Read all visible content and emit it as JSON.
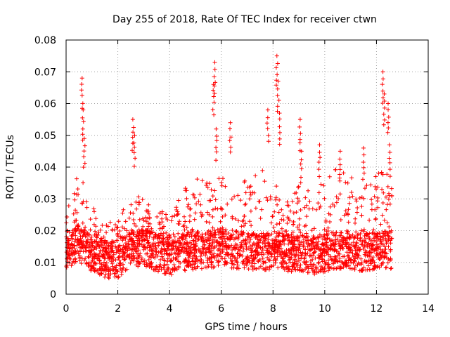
{
  "chart_data": {
    "type": "scatter",
    "title": "Day 255 of 2018, Rate Of TEC Index for receiver ctwn",
    "xlabel": "GPS time / hours",
    "ylabel": "ROTI / TECUs",
    "xlim": [
      0,
      14
    ],
    "ylim": [
      0,
      0.08
    ],
    "xticks": [
      0,
      2,
      4,
      6,
      8,
      10,
      12,
      14
    ],
    "xtick_labels": [
      "0",
      "2",
      "4",
      "6",
      "8",
      "10",
      "12",
      "14"
    ],
    "yticks": [
      0,
      0.01,
      0.02,
      0.03,
      0.04,
      0.05,
      0.06,
      0.07,
      0.08
    ],
    "ytick_labels": [
      "0",
      "0.01",
      "0.02",
      "0.03",
      "0.04",
      "0.05",
      "0.06",
      "0.07",
      "0.08"
    ],
    "grid": true,
    "marker": "+",
    "series": [
      {
        "name": "ROTI",
        "color": "#ff0000",
        "x_range": [
          0,
          12.6
        ],
        "profile": {
          "x": [
            0.0,
            0.5,
            1.0,
            1.5,
            2.0,
            2.5,
            3.0,
            3.5,
            4.0,
            4.5,
            5.0,
            5.5,
            6.0,
            6.5,
            7.0,
            7.5,
            8.0,
            8.5,
            9.0,
            9.5,
            10.0,
            10.5,
            11.0,
            11.5,
            12.0,
            12.6
          ],
          "median": [
            0.014,
            0.016,
            0.013,
            0.011,
            0.011,
            0.014,
            0.015,
            0.013,
            0.012,
            0.013,
            0.014,
            0.014,
            0.015,
            0.014,
            0.014,
            0.013,
            0.014,
            0.013,
            0.013,
            0.012,
            0.013,
            0.014,
            0.014,
            0.013,
            0.014,
            0.014
          ],
          "upper": [
            0.03,
            0.04,
            0.028,
            0.022,
            0.024,
            0.035,
            0.03,
            0.025,
            0.028,
            0.032,
            0.038,
            0.036,
            0.038,
            0.035,
            0.036,
            0.04,
            0.036,
            0.03,
            0.034,
            0.032,
            0.036,
            0.04,
            0.038,
            0.034,
            0.04,
            0.038
          ]
        },
        "spikes": [
          {
            "x": 0.62,
            "y": 0.068
          },
          {
            "x": 0.66,
            "y": 0.058
          },
          {
            "x": 0.7,
            "y": 0.049
          },
          {
            "x": 2.58,
            "y": 0.055
          },
          {
            "x": 2.65,
            "y": 0.05
          },
          {
            "x": 5.75,
            "y": 0.073
          },
          {
            "x": 5.7,
            "y": 0.066
          },
          {
            "x": 5.8,
            "y": 0.052
          },
          {
            "x": 6.35,
            "y": 0.054
          },
          {
            "x": 7.8,
            "y": 0.058
          },
          {
            "x": 8.15,
            "y": 0.075
          },
          {
            "x": 8.2,
            "y": 0.067
          },
          {
            "x": 8.25,
            "y": 0.057
          },
          {
            "x": 9.05,
            "y": 0.055
          },
          {
            "x": 9.1,
            "y": 0.045
          },
          {
            "x": 9.8,
            "y": 0.047
          },
          {
            "x": 10.6,
            "y": 0.045
          },
          {
            "x": 11.5,
            "y": 0.046
          },
          {
            "x": 12.25,
            "y": 0.07
          },
          {
            "x": 12.3,
            "y": 0.063
          },
          {
            "x": 12.45,
            "y": 0.06
          },
          {
            "x": 12.5,
            "y": 0.047
          }
        ]
      }
    ]
  }
}
